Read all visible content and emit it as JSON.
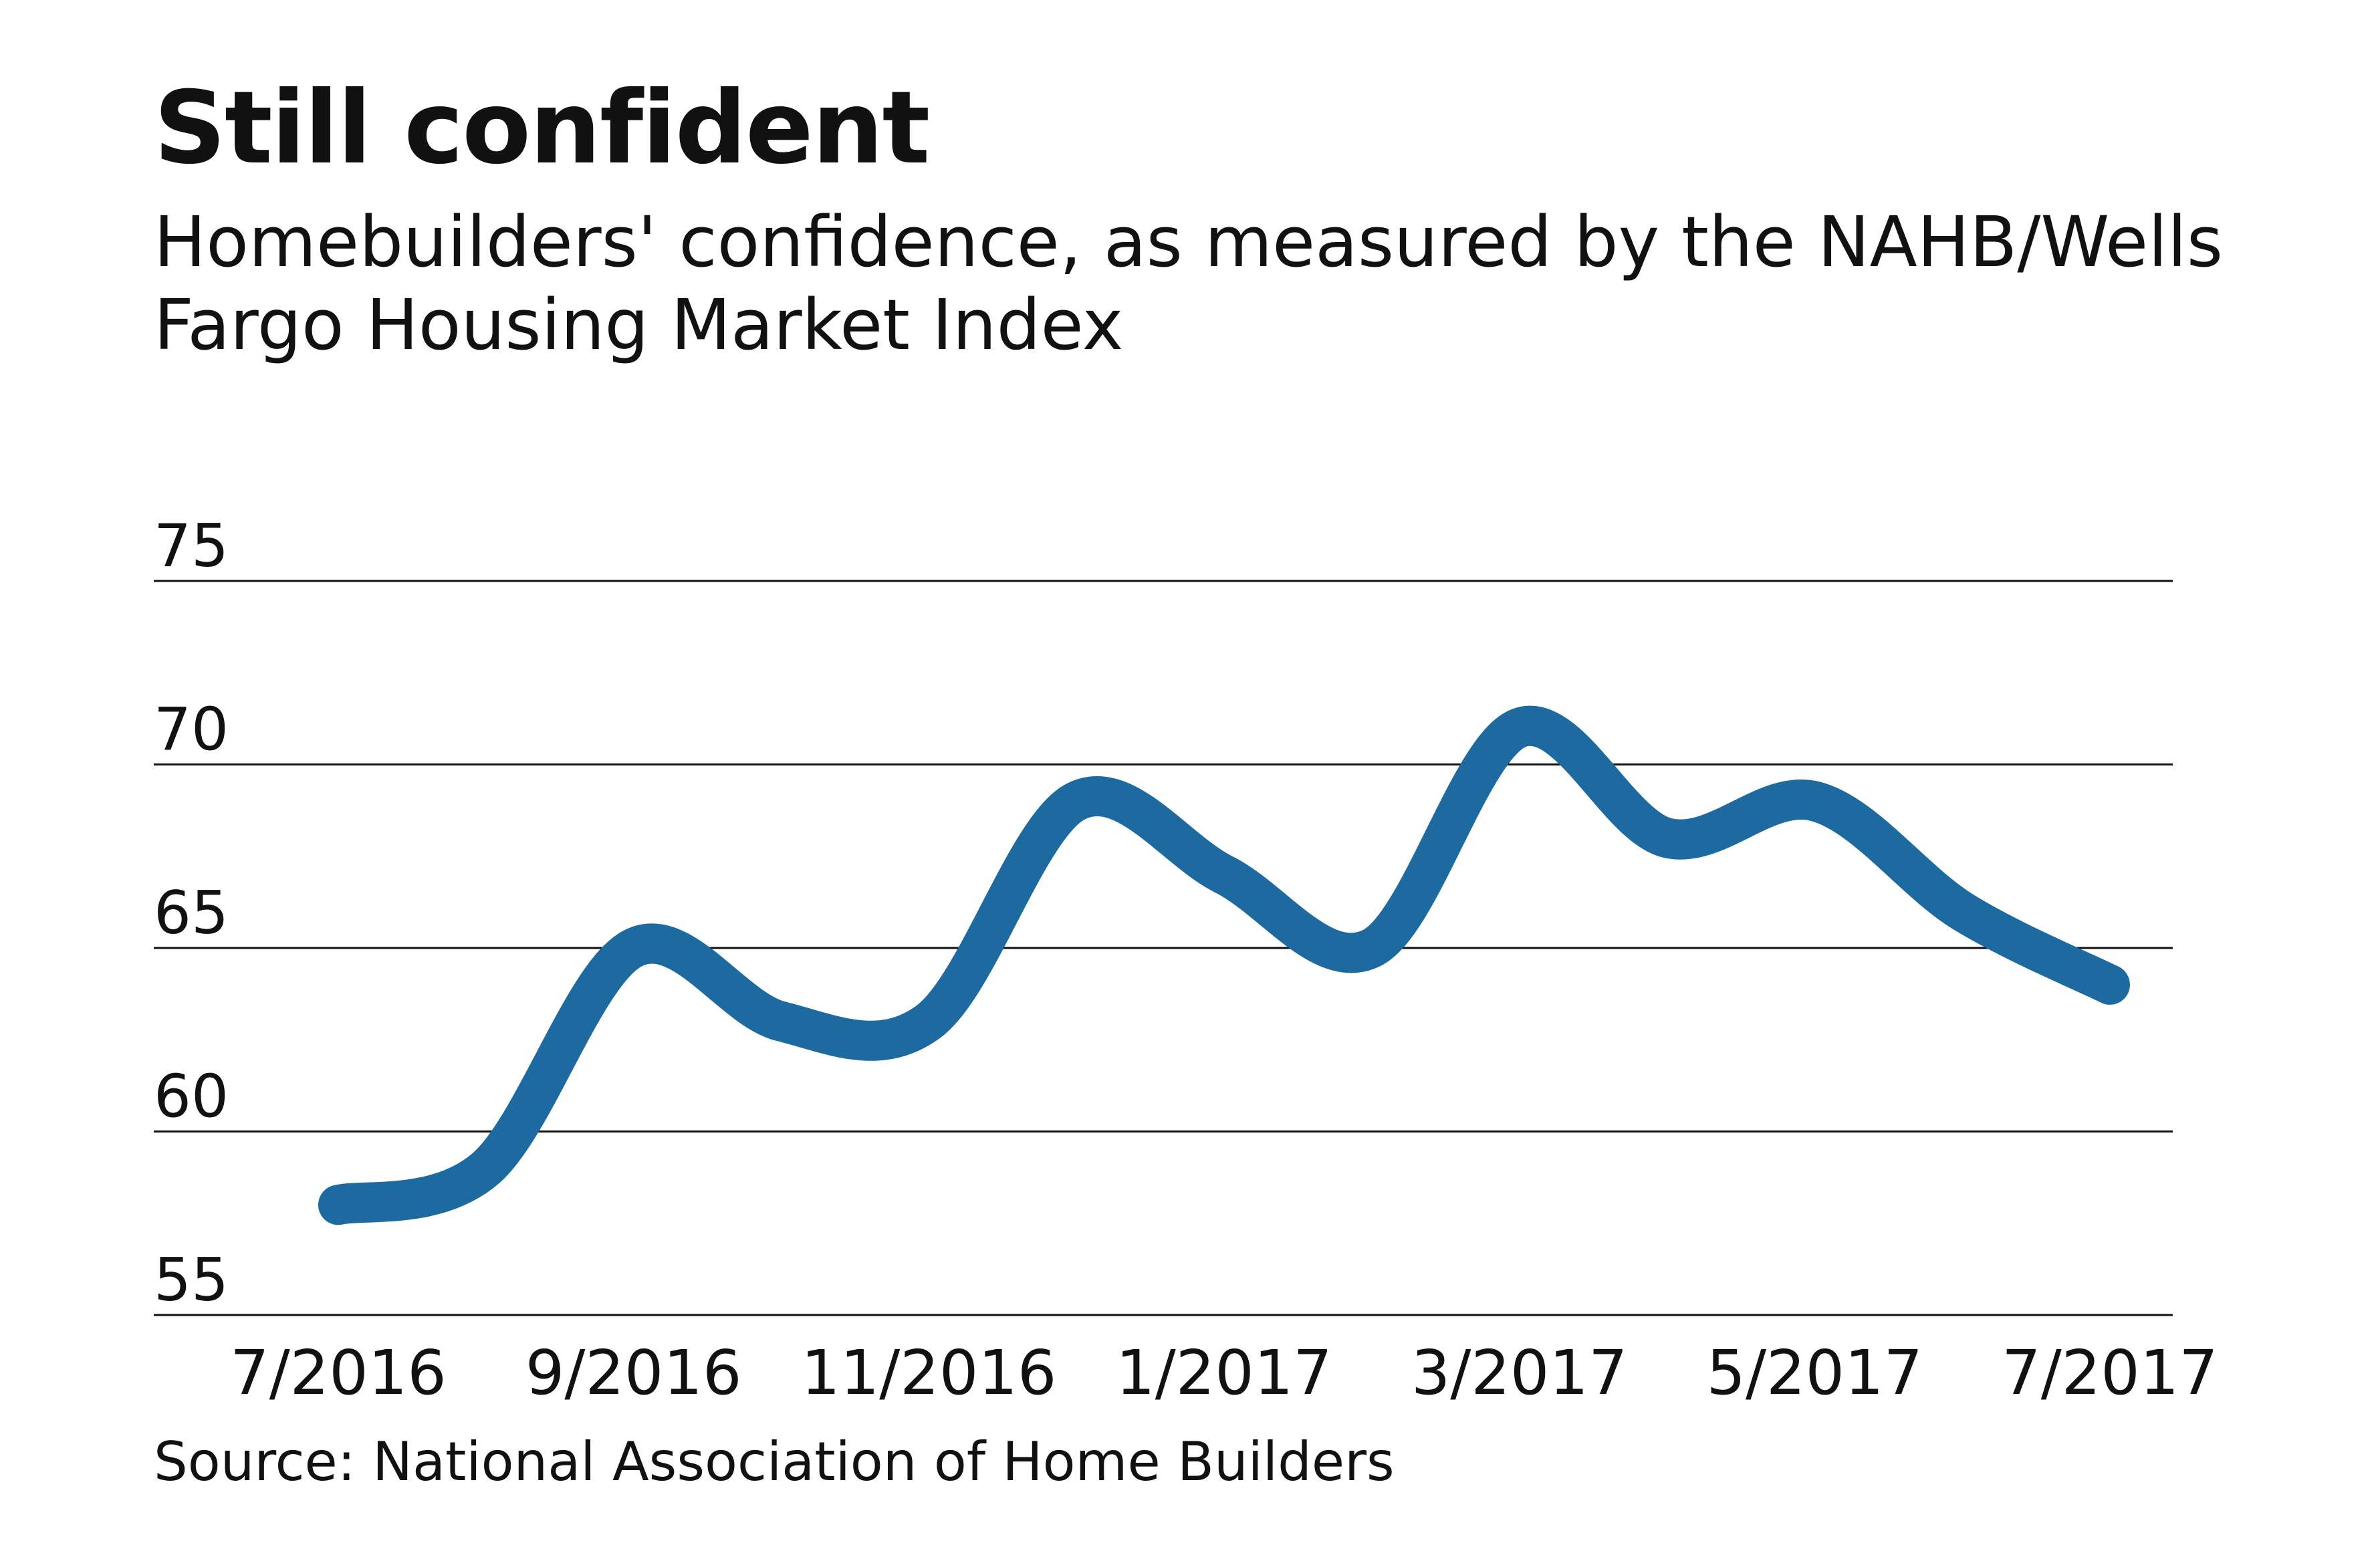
{
  "chart_data": {
    "type": "line",
    "title": "Still confident",
    "subtitle": "Homebuilders' confidence, as measured by the NAHB/Wells Fargo Housing Market Index",
    "source": "Source: National Association of Home Builders",
    "x": [
      "7/2016",
      "8/2016",
      "9/2016",
      "10/2016",
      "11/2016",
      "12/2016",
      "1/2017",
      "2/2017",
      "3/2017",
      "4/2017",
      "5/2017",
      "6/2017",
      "7/2017"
    ],
    "x_tick_labels": [
      "7/2016",
      "9/2016",
      "11/2016",
      "1/2017",
      "3/2017",
      "5/2017",
      "7/2017"
    ],
    "series": [
      {
        "values": [
          58,
          59,
          65,
          63,
          63,
          69,
          67,
          65,
          71,
          68,
          69,
          66,
          64
        ]
      }
    ],
    "ylim": [
      55,
      75
    ],
    "y_ticks": [
      "55",
      "60",
      "65",
      "70",
      "75"
    ],
    "grid": true,
    "line_color": "#1d6aa0"
  }
}
